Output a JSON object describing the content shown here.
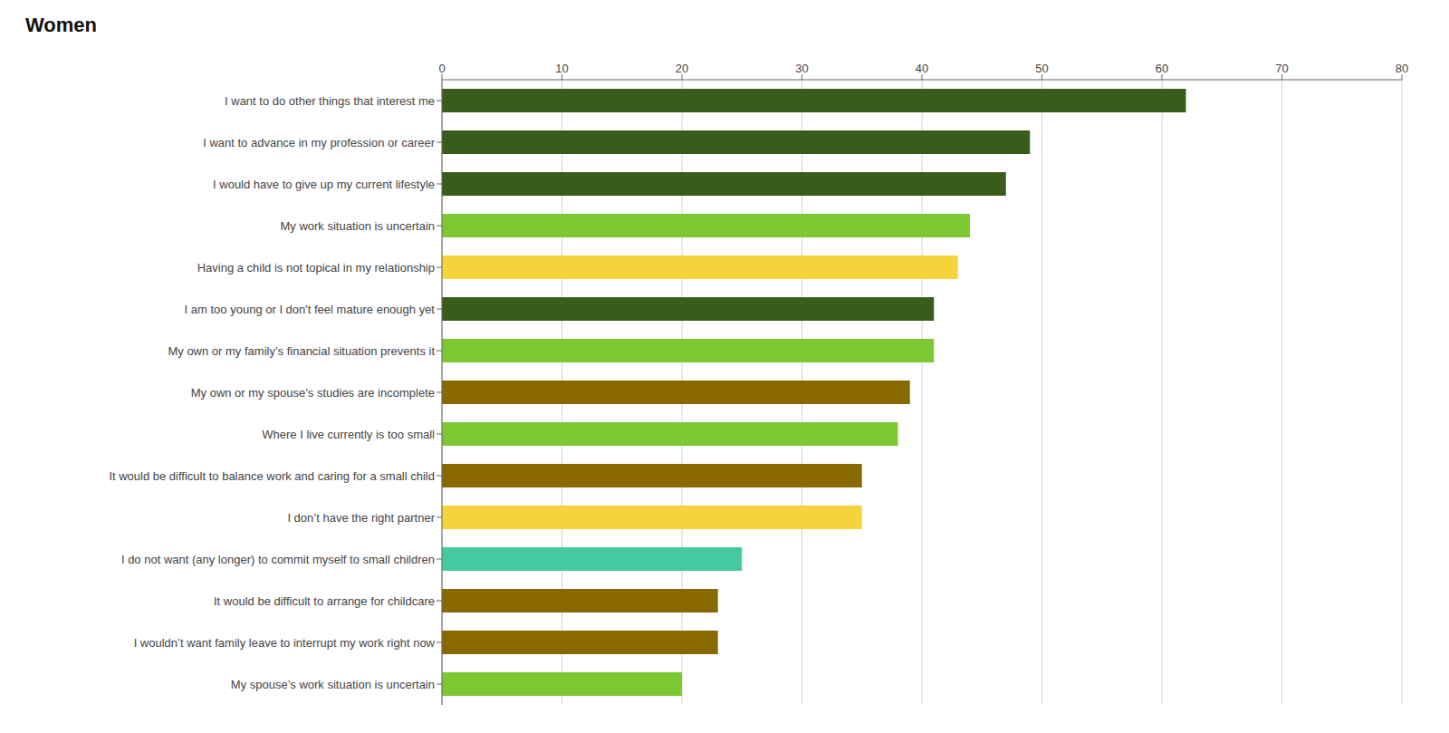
{
  "chart_data": {
    "type": "bar",
    "title": "Women",
    "orientation": "horizontal",
    "categories": [
      "I want to do other things that interest me",
      "I want to advance in my profession or career",
      "I would have to give up my current lifestyle",
      "My work situation is uncertain",
      "Having a child is not topical in my relationship",
      "I am too young or I don't feel mature enough yet",
      "My own or my family’s financial situation prevents it",
      "My own or my spouse’s studies are incomplete",
      "Where I live currently is too small",
      "It would be difficult to balance work and caring for a small child",
      "I don’t have the right partner",
      "I do not want (any longer) to commit myself to small children",
      "It would be difficult to arrange for childcare",
      "I wouldn’t want family leave to interrupt my work right now",
      "My spouse’s work situation is uncertain"
    ],
    "values": [
      62,
      49,
      47,
      44,
      43,
      41,
      41,
      39,
      38,
      35,
      35,
      25,
      23,
      23,
      20
    ],
    "colors": [
      "#3a5c1a",
      "#3a5c1a",
      "#3a5c1a",
      "#7dc832",
      "#f5d33a",
      "#3a5c1a",
      "#7dc832",
      "#8a6800",
      "#7dc832",
      "#8a6800",
      "#f5d33a",
      "#45c9a0",
      "#8a6800",
      "#8a6800",
      "#7dc832"
    ],
    "xlim": [
      0,
      80
    ],
    "xticks": [
      0,
      10,
      20,
      30,
      40,
      50,
      60,
      70,
      80
    ],
    "grid": true
  }
}
